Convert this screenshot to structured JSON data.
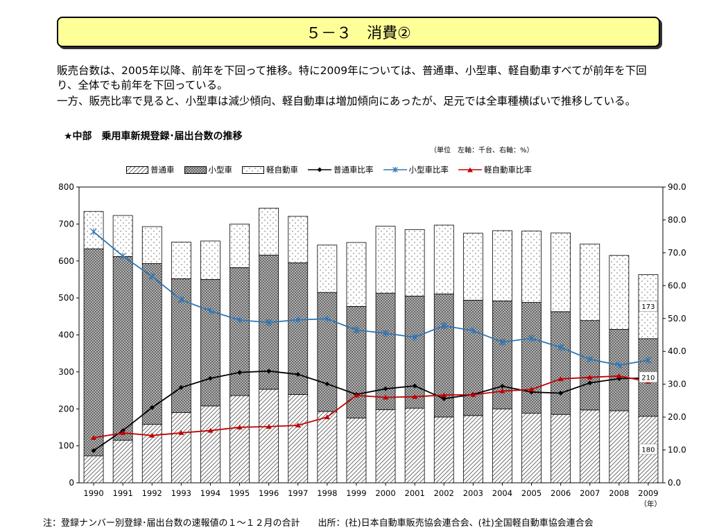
{
  "page": {
    "title": "５－３　消費②",
    "paragraph1": "販売台数は、2005年以降、前年を下回って推移。特に2009年については、普通車、小型車、軽自動車すべてが前年を下回り、全体でも前年を下回っている。",
    "paragraph2": "一方、販売比率で見ると、小型車は減少傾向、軽自動車は増加傾向にあったが、足元では全車種横ばいで推移している。",
    "chart_heading": "★中部　乗用車新規登録･届出台数の推移",
    "unit_note": "（単位　左軸：千台、右軸：%）",
    "footer": "注：登録ナンバー別登録･届出台数の速報値の１～１２月の合計　　出所：(社)日本自動車販売協会連合会、(社)全国軽自動車協会連合会"
  },
  "colors": {
    "title_bg": "#ffff99",
    "futsu_ratio": "#000000",
    "kogata_ratio": "#2e75b6",
    "kei_ratio": "#c00000"
  },
  "chart_data": {
    "type": "bar",
    "stacked": true,
    "categories": [
      "1990",
      "1991",
      "1992",
      "1993",
      "1994",
      "1995",
      "1996",
      "1997",
      "1998",
      "1999",
      "2000",
      "2001",
      "2002",
      "2003",
      "2004",
      "2005",
      "2006",
      "2007",
      "2008",
      "2009"
    ],
    "x_unit": "（年）",
    "ylim": [
      0,
      800
    ],
    "y_ticks": [
      "0",
      "100",
      "200",
      "300",
      "400",
      "500",
      "600",
      "700",
      "800"
    ],
    "y2lim": [
      0,
      90
    ],
    "y2_ticks": [
      "0.0",
      "10.0",
      "20.0",
      "30.0",
      "40.0",
      "50.0",
      "60.0",
      "70.0",
      "80.0",
      "90.0"
    ],
    "bar_series": [
      {
        "name": "普通車",
        "pattern": "diag",
        "values": [
          73,
          115,
          158,
          190,
          208,
          236,
          253,
          239,
          193,
          175,
          198,
          202,
          178,
          182,
          200,
          188,
          185,
          197,
          195,
          180
        ]
      },
      {
        "name": "小型車",
        "pattern": "cross",
        "values": [
          560,
          497,
          435,
          362,
          342,
          346,
          363,
          356,
          322,
          302,
          315,
          303,
          333,
          312,
          292,
          300,
          278,
          242,
          220,
          210
        ]
      },
      {
        "name": "軽自動車",
        "pattern": "dots",
        "values": [
          101,
          111,
          100,
          99,
          104,
          118,
          127,
          126,
          128,
          173,
          181,
          180,
          186,
          181,
          190,
          193,
          213,
          207,
          200,
          173
        ]
      }
    ],
    "line_series": [
      {
        "name": "普通車比率",
        "marker": "diamond",
        "values": [
          9.8,
          15.9,
          22.9,
          29.0,
          31.8,
          33.6,
          34.0,
          33.0,
          30.1,
          26.9,
          28.6,
          29.5,
          25.6,
          26.9,
          29.4,
          27.6,
          27.3,
          30.4,
          31.7,
          31.9
        ]
      },
      {
        "name": "小型車比率",
        "marker": "star",
        "values": [
          76.4,
          69.0,
          62.8,
          55.7,
          52.3,
          49.5,
          48.8,
          49.6,
          49.9,
          46.5,
          45.5,
          44.3,
          47.8,
          46.3,
          42.8,
          44.0,
          41.2,
          37.6,
          35.8,
          37.3
        ]
      },
      {
        "name": "軽自動車比率",
        "marker": "triangle",
        "values": [
          13.7,
          15.2,
          14.4,
          15.2,
          15.9,
          16.9,
          17.1,
          17.5,
          20.0,
          26.6,
          26.0,
          26.2,
          26.7,
          26.8,
          27.9,
          28.4,
          31.6,
          32.1,
          32.5,
          30.8
        ]
      }
    ],
    "data_labels": [
      {
        "series": "軽自動車",
        "category": "2009",
        "text": "173"
      },
      {
        "series": "小型車",
        "category": "2009",
        "text": "210"
      },
      {
        "series": "普通車",
        "category": "2009",
        "text": "180"
      }
    ],
    "legend_position": "top"
  }
}
